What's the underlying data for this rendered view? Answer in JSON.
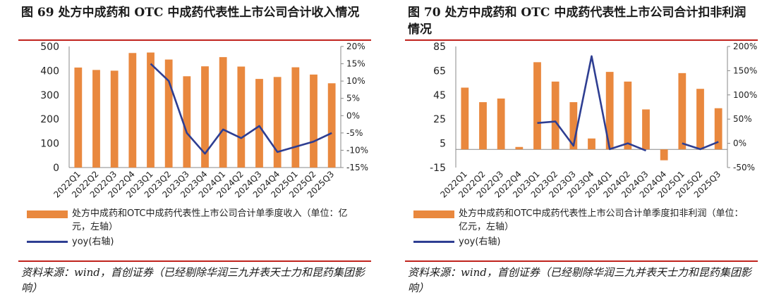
{
  "colors": {
    "bar": "#e9883e",
    "line": "#2e3e92",
    "rule": "#c0231d",
    "axis": "#888888"
  },
  "chart_data": [
    {
      "type": "bar",
      "title": "图 69 处方中成药和 OTC 中成药代表性上市公司合计收入情况",
      "categories": [
        "2022Q1",
        "2022Q2",
        "2022Q3",
        "2022Q4",
        "2023Q1",
        "2023Q2",
        "2023Q3",
        "2023Q4",
        "2024Q1",
        "2024Q2",
        "2024Q3",
        "2024Q4",
        "2025Q1",
        "2025Q2",
        "2025Q3"
      ],
      "series": [
        {
          "name": "处方中成药和OTC中成药代表性上市公司合计单季度收入（单位：亿元，左轴）",
          "axis": "left",
          "type": "bar",
          "values": [
            413,
            403,
            400,
            473,
            475,
            446,
            377,
            418,
            456,
            417,
            366,
            374,
            414,
            384,
            348
          ]
        },
        {
          "name": "yoy(右轴)",
          "axis": "right",
          "type": "line",
          "unit": "%",
          "values": [
            null,
            null,
            null,
            null,
            15,
            10,
            -5,
            -11,
            -4,
            -6.5,
            -3,
            -10.5,
            -9,
            -7.5,
            -5
          ]
        }
      ],
      "y_left": {
        "lim": [
          0,
          500
        ],
        "ticks": [
          0,
          100,
          200,
          300,
          400,
          500
        ],
        "tick_labels": [
          "0",
          "100",
          "200",
          "300",
          "400",
          "500"
        ]
      },
      "y_right": {
        "lim": [
          -15,
          20
        ],
        "ticks": [
          -15,
          -10,
          -5,
          0,
          5,
          10,
          15,
          20
        ],
        "tick_labels": [
          "-15%",
          "-10%",
          "-5%",
          "0%",
          "5%",
          "10%",
          "15%",
          "20%"
        ]
      },
      "legend": [
        "处方中成药和OTC中成药代表性上市公司合计单季度收入（单位：亿元，左轴）",
        "yoy(右轴)"
      ],
      "source": "资料来源：wind，首创证券（已经剔除华润三九并表天士力和昆药集团影响）"
    },
    {
      "type": "bar",
      "title": "图 70 处方中成药和 OTC 中成药代表性上市公司合计扣非利润情况",
      "categories": [
        "2022Q1",
        "2022Q2",
        "2022Q3",
        "2022Q4",
        "2023Q1",
        "2023Q2",
        "2023Q3",
        "2023Q4",
        "2024Q1",
        "2024Q2",
        "2024Q3",
        "2024Q4",
        "2025Q1",
        "2025Q2",
        "2025Q3"
      ],
      "series": [
        {
          "name": "处方中成药和OTC中成药代表性上市公司合计单季度扣非利润（单位：亿元，左轴）",
          "axis": "left",
          "type": "bar",
          "values": [
            51,
            39,
            42,
            2,
            72,
            56,
            39,
            9,
            64,
            56,
            33,
            -9,
            63,
            50,
            34
          ]
        },
        {
          "name": "yoy(右轴)",
          "axis": "right",
          "type": "line",
          "unit": "%",
          "values": [
            null,
            null,
            null,
            null,
            42,
            45,
            -5,
            180,
            -12,
            0,
            -15,
            null,
            0,
            -12,
            3
          ]
        }
      ],
      "y_left": {
        "lim": [
          -15,
          85
        ],
        "ticks": [
          -15,
          5,
          25,
          45,
          65,
          85
        ],
        "tick_labels": [
          "-15",
          "5",
          "25",
          "45",
          "65",
          "85"
        ]
      },
      "y_right": {
        "lim": [
          -50,
          200
        ],
        "ticks": [
          -50,
          0,
          50,
          100,
          150,
          200
        ],
        "tick_labels": [
          "-50%",
          "0%",
          "50%",
          "100%",
          "150%",
          "200%"
        ]
      },
      "legend": [
        "处方中成药和OTC中成药代表性上市公司合计单季度扣非利润（单位：亿元，左轴）",
        "yoy(右轴)"
      ],
      "source": "资料来源：wind，首创证券（已经剔除华润三九并表天士力和昆药集团影响）"
    }
  ]
}
